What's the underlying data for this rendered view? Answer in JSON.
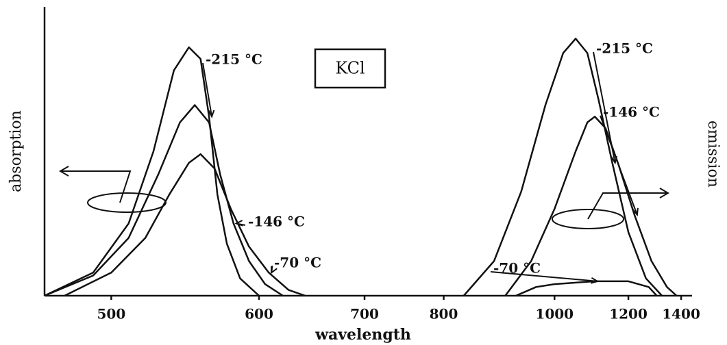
{
  "chart_data": {
    "type": "line",
    "xscale": "reciprocal",
    "xlabel": "wavelength",
    "ylabel": "absorption",
    "y2label": "emission",
    "box_label": "KCl",
    "xlim": [
      465,
      1450
    ],
    "xticks": [
      500,
      600,
      700,
      800,
      1000,
      1200,
      1400
    ],
    "ylim": [
      0,
      1
    ],
    "series": [
      {
        "name": "-215 °C",
        "color": "#111111",
        "x": [
          465,
          490,
          510,
          525,
          538,
          548,
          556,
          562,
          568,
          575,
          585,
          600
        ],
        "values": [
          0,
          0.08,
          0.25,
          0.5,
          0.78,
          0.86,
          0.82,
          0.62,
          0.35,
          0.18,
          0.06,
          0
        ]
      },
      {
        "name": "-146 °C",
        "color": "#111111",
        "x": [
          465,
          490,
          510,
          528,
          542,
          552,
          562,
          570,
          580,
          592,
          605,
          620
        ],
        "values": [
          0,
          0.07,
          0.2,
          0.42,
          0.6,
          0.66,
          0.6,
          0.42,
          0.25,
          0.12,
          0.04,
          0
        ]
      },
      {
        "name": "-70 °C",
        "color": "#111111",
        "x": [
          475,
          500,
          520,
          535,
          548,
          556,
          566,
          578,
          592,
          608,
          625,
          640
        ],
        "values": [
          0,
          0.08,
          0.2,
          0.35,
          0.46,
          0.49,
          0.44,
          0.3,
          0.17,
          0.08,
          0.02,
          0
        ]
      },
      {
        "name": "-215 °C",
        "color": "#111111",
        "x": [
          830,
          880,
          930,
          980,
          1020,
          1050,
          1080,
          1110,
          1150,
          1200,
          1260,
          1320
        ],
        "values": [
          0,
          0.12,
          0.36,
          0.66,
          0.84,
          0.89,
          0.84,
          0.68,
          0.46,
          0.22,
          0.06,
          0
        ]
      },
      {
        "name": "-146 °C",
        "color": "#111111",
        "x": [
          900,
          950,
          1000,
          1050,
          1080,
          1100,
          1130,
          1170,
          1220,
          1280,
          1340,
          1380
        ],
        "values": [
          0,
          0.12,
          0.3,
          0.5,
          0.6,
          0.62,
          0.58,
          0.45,
          0.28,
          0.12,
          0.03,
          0
        ]
      },
      {
        "name": "-70 °C",
        "color": "#111111",
        "x": [
          920,
          960,
          1000,
          1100,
          1200,
          1270,
          1300
        ],
        "values": [
          0,
          0.03,
          0.04,
          0.05,
          0.05,
          0.03,
          0
        ]
      }
    ]
  }
}
